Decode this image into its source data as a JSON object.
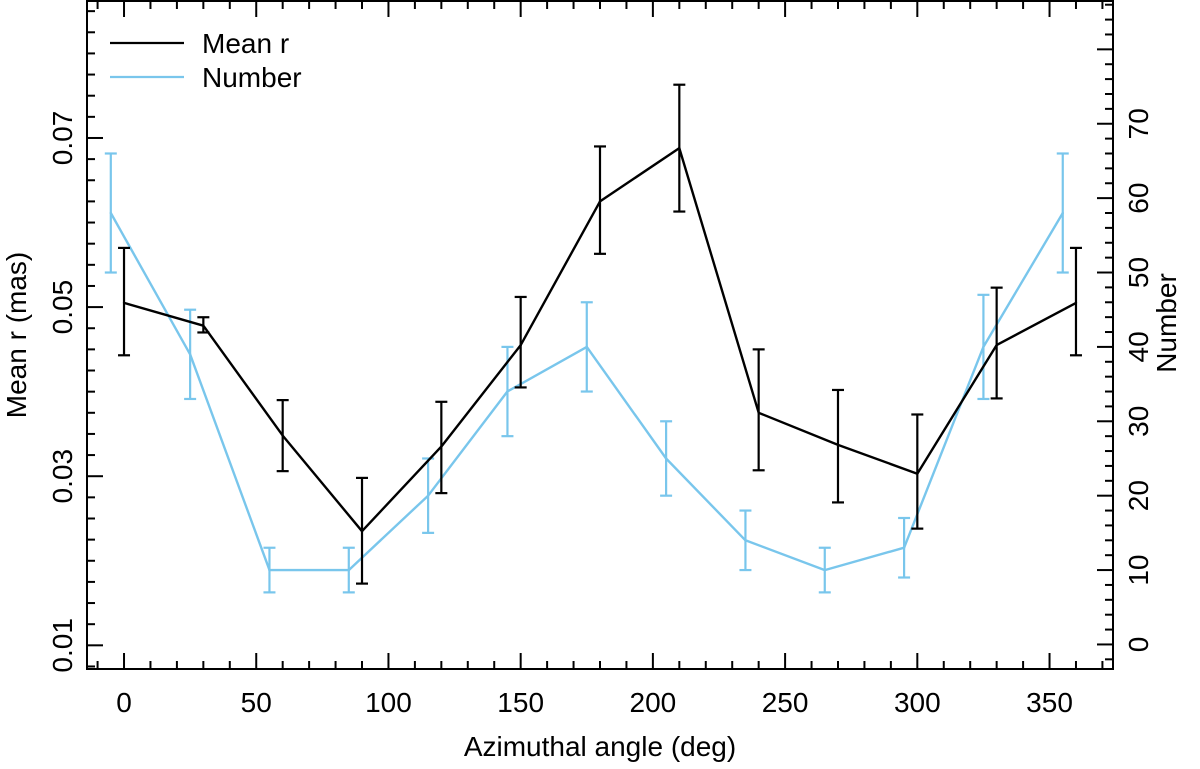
{
  "chart_data": {
    "type": "line",
    "xlabel": "Azimuthal angle (deg)",
    "ylabel": "Mean r (mas)",
    "y2label": "Number",
    "xlim": [
      -14,
      374
    ],
    "ylim": [
      0.0072,
      0.0862
    ],
    "y2lim": [
      -3.3,
      86.5
    ],
    "xticks": [
      0,
      50,
      100,
      150,
      200,
      250,
      300,
      350
    ],
    "xtick_labels": [
      "0",
      "50",
      "100",
      "150",
      "200",
      "250",
      "300",
      "350"
    ],
    "yticks": [
      0.01,
      0.03,
      0.05,
      0.07
    ],
    "ytick_labels": [
      "0.01",
      "0.03",
      "0.05",
      "0.07"
    ],
    "y2ticks": [
      0,
      10,
      20,
      30,
      40,
      50,
      60,
      70
    ],
    "y2tick_labels": [
      "0",
      "10",
      "20",
      "30",
      "40",
      "50",
      "60",
      "70"
    ],
    "legend_position": "top-left",
    "grid": false,
    "series": [
      {
        "name": "Mean r",
        "axis": "left",
        "color": "#000000",
        "x": [
          0,
          30,
          60,
          90,
          120,
          150,
          180,
          210,
          240,
          270,
          300,
          330,
          360
        ],
        "values": [
          0.0505,
          0.0478,
          0.0348,
          0.0235,
          0.0335,
          0.0455,
          0.0625,
          0.0688,
          0.0375,
          0.0337,
          0.0303,
          0.0455,
          0.0505
        ],
        "err_low": [
          0.0062,
          0.0008,
          0.0042,
          0.0062,
          0.0055,
          0.005,
          0.0062,
          0.0075,
          0.0068,
          0.0068,
          0.0065,
          0.0063,
          0.0062
        ],
        "err_high": [
          0.0065,
          0.001,
          0.0042,
          0.0063,
          0.0053,
          0.0057,
          0.0065,
          0.0075,
          0.0075,
          0.0065,
          0.007,
          0.0068,
          0.0065
        ]
      },
      {
        "name": "Number",
        "axis": "right",
        "color": "#79c6ec",
        "x": [
          -5,
          25,
          55,
          85,
          115,
          145,
          175,
          205,
          235,
          265,
          295,
          325,
          355
        ],
        "values": [
          58,
          39,
          10,
          10,
          20,
          34,
          40,
          25,
          14,
          10,
          13,
          40,
          58
        ],
        "err_low": [
          8,
          6,
          3,
          3,
          5,
          6,
          6,
          5,
          4,
          3,
          4,
          7,
          8
        ],
        "err_high": [
          8,
          6,
          3,
          3,
          5,
          6,
          6,
          5,
          4,
          3,
          4,
          7,
          8
        ]
      }
    ]
  }
}
